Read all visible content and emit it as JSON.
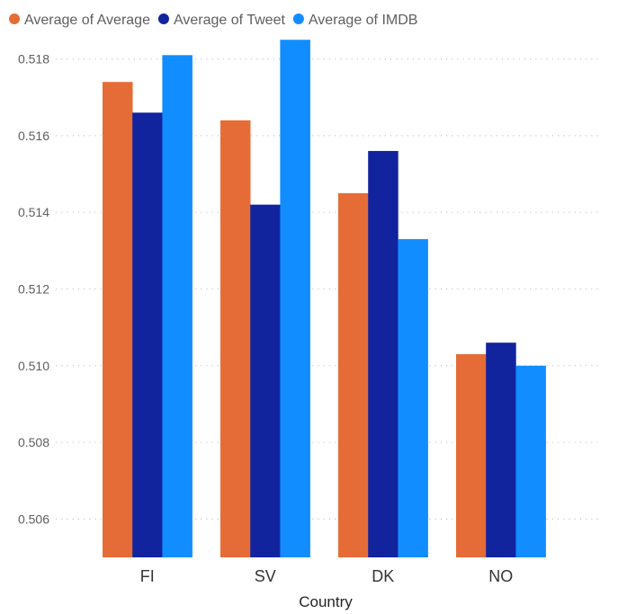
{
  "chart_data": {
    "type": "bar",
    "title": "",
    "xlabel": "Country",
    "ylabel": "",
    "categories": [
      "FI",
      "SV",
      "DK",
      "NO"
    ],
    "series": [
      {
        "name": "Average of Average",
        "color": "#e66c37",
        "values": [
          0.5174,
          0.5164,
          0.5145,
          0.5103
        ]
      },
      {
        "name": "Average of Tweet",
        "color": "#12239e",
        "values": [
          0.5166,
          0.5142,
          0.5156,
          0.5106
        ]
      },
      {
        "name": "Average of IMDB",
        "color": "#118dff",
        "values": [
          0.5181,
          0.5185,
          0.5133,
          0.51
        ]
      }
    ],
    "ylim": [
      0.505,
      0.5186
    ],
    "yticks": [
      "0.506",
      "0.508",
      "0.510",
      "0.512",
      "0.514",
      "0.516",
      "0.518"
    ],
    "grid": true,
    "legend_position": "top-left"
  }
}
